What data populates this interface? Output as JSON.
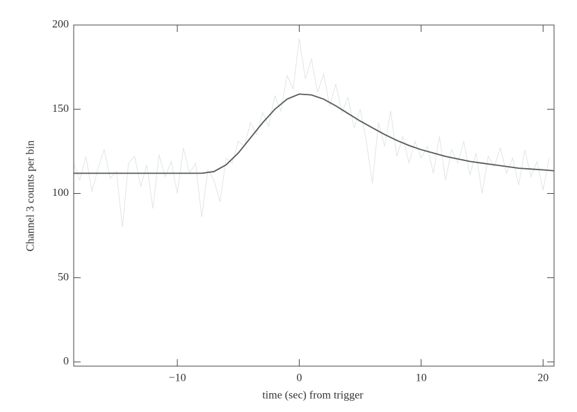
{
  "chart_data": {
    "type": "line",
    "xlabel": "time (sec) from trigger",
    "ylabel": "Channel 3 counts per bin",
    "xlim": [
      -18.5,
      20.9
    ],
    "ylim": [
      -2.5,
      200
    ],
    "xticks": [
      {
        "value": -10,
        "label": "−10"
      },
      0,
      10,
      20
    ],
    "yticks": [
      0,
      50,
      100,
      150,
      200
    ],
    "series": [
      {
        "color": "#e1e5e5",
        "x": [
          -18.5,
          -18,
          -17.5,
          -17,
          -16.5,
          -16,
          -15.5,
          -15,
          -14.5,
          -14,
          -13.5,
          -13,
          -12.5,
          -12,
          -11.5,
          -11,
          -10.5,
          -10,
          -9.5,
          -9,
          -8.5,
          -8,
          -7.5,
          -7,
          -6.5,
          -6,
          -5.5,
          -5,
          -4.5,
          -4,
          -3.5,
          -3,
          -2.5,
          -2,
          -1.5,
          -1,
          -0.5,
          0,
          0.5,
          1,
          1.5,
          2,
          2.5,
          3,
          3.5,
          4,
          4.5,
          5,
          5.5,
          6,
          6.5,
          7,
          7.5,
          8,
          8.5,
          9,
          9.5,
          10,
          10.5,
          11,
          11.5,
          12,
          12.5,
          13,
          13.5,
          14,
          14.5,
          15,
          15.5,
          16,
          16.5,
          17,
          17.5,
          18,
          18.5,
          19,
          19.5,
          20,
          20.5
        ],
        "values": [
          118,
          108,
          122,
          101,
          115,
          126,
          109,
          113,
          80,
          118,
          122,
          104,
          117,
          91,
          123,
          110,
          119,
          100,
          127,
          112,
          118,
          86,
          114,
          108,
          95,
          121,
          118,
          131,
          128,
          142,
          135,
          148,
          140,
          158,
          149,
          170,
          162,
          192,
          168,
          180,
          160,
          171,
          152,
          165,
          148,
          157,
          139,
          150,
          131,
          106,
          142,
          128,
          149,
          122,
          134,
          118,
          131,
          121,
          128,
          112,
          134,
          108,
          126,
          118,
          131,
          111,
          124,
          100,
          122,
          116,
          127,
          112,
          121,
          105,
          126,
          110,
          119,
          102,
          121
        ]
      },
      {
        "color": "#555a5a",
        "x": [
          -18.5,
          -17,
          -16,
          -15,
          -14,
          -13,
          -12,
          -11,
          -10,
          -9,
          -8,
          -7,
          -6,
          -5,
          -4,
          -3,
          -2,
          -1,
          0,
          1,
          2,
          3,
          4,
          5,
          6,
          7,
          8,
          9,
          10,
          11,
          12,
          13,
          14,
          15,
          16,
          17,
          18,
          19,
          20,
          20.9
        ],
        "values": [
          112,
          112,
          112,
          112,
          112,
          112,
          112,
          112,
          112,
          112,
          112,
          113,
          117,
          124,
          133,
          142,
          150,
          156,
          159,
          158.5,
          156,
          152,
          147.5,
          143,
          139,
          135,
          131.5,
          128.5,
          126,
          124,
          122,
          120.5,
          119,
          118,
          117,
          116,
          115,
          114.5,
          114,
          113.5
        ]
      }
    ]
  }
}
